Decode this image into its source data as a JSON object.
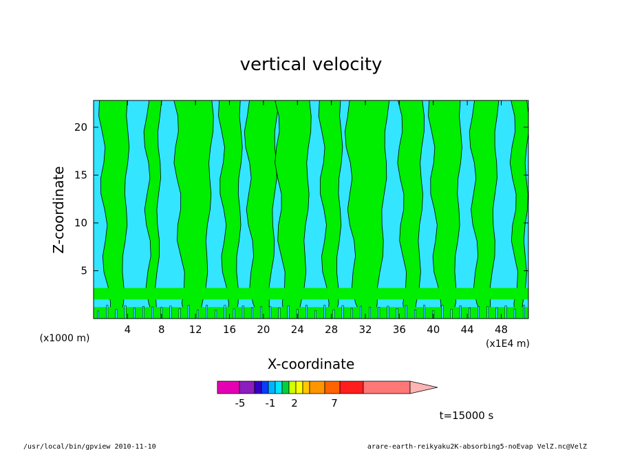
{
  "chart_data": {
    "type": "heatmap",
    "title": "vertical velocity",
    "xlabel": "X-coordinate",
    "ylabel": "Z-coordinate",
    "x_unit_note": "(x1000 m)",
    "x_scale_note": "(x1E4 m)",
    "x_ticks": [
      4,
      8,
      12,
      16,
      20,
      24,
      28,
      32,
      36,
      40,
      44,
      48
    ],
    "y_ticks": [
      5,
      10,
      15,
      20
    ],
    "xlim": [
      0,
      51.2
    ],
    "ylim": [
      0,
      22.8
    ],
    "time_label": "t=15000 s",
    "colors": {
      "negative_fill": "#33e5ff",
      "positive_fill": "#00ee00",
      "contour": "#000000"
    },
    "bands": [
      {
        "center": 2.5,
        "half_width": 1.6,
        "sign": "+"
      },
      {
        "center": 7.0,
        "half_width": 0.8,
        "sign": "+"
      },
      {
        "center": 11.8,
        "half_width": 2.2,
        "sign": "+"
      },
      {
        "center": 16.2,
        "half_width": 1.2,
        "sign": "+"
      },
      {
        "center": 19.8,
        "half_width": 1.8,
        "sign": "+"
      },
      {
        "center": 23.5,
        "half_width": 2.0,
        "sign": "+"
      },
      {
        "center": 28.0,
        "half_width": 1.2,
        "sign": "+"
      },
      {
        "center": 32.2,
        "half_width": 2.4,
        "sign": "+"
      },
      {
        "center": 37.4,
        "half_width": 1.4,
        "sign": "+"
      },
      {
        "center": 41.5,
        "half_width": 1.8,
        "sign": "+"
      },
      {
        "center": 46.0,
        "half_width": 1.5,
        "sign": "+"
      },
      {
        "center": 50.2,
        "half_width": 0.9,
        "sign": "+"
      }
    ],
    "colorbar": {
      "colors": [
        "#e600b4",
        "#8c1ebe",
        "#3200c8",
        "#0a3cff",
        "#00b4ff",
        "#00e6ff",
        "#00d23c",
        "#d2ff00",
        "#ffff00",
        "#ffc800",
        "#ff9600",
        "#ff6400",
        "#ff1e1e",
        "#ff7878",
        "#ffb4b4"
      ],
      "tick_labels": [
        "-5",
        "-1",
        "2",
        "7"
      ]
    }
  },
  "footer": {
    "left": "/usr/local/bin/gpview  2010-11-10",
    "right": "arare-earth-reikyaku2K-absorbing5-noEvap_VelZ.nc@VelZ"
  }
}
